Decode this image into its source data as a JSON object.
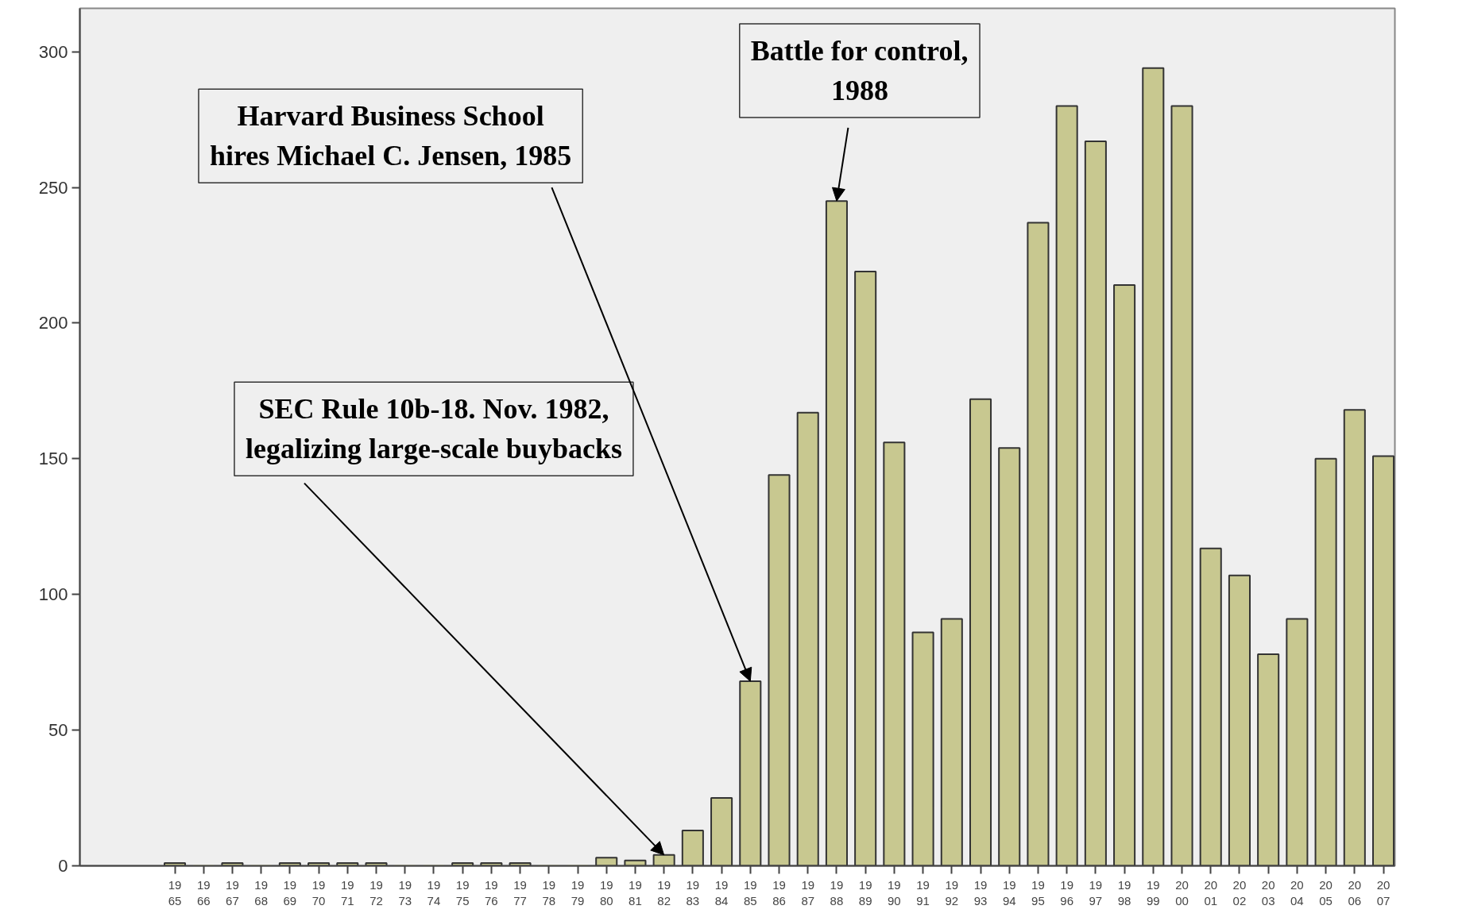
{
  "chart_data": {
    "type": "bar",
    "categories": [
      "19\n65",
      "19\n66",
      "19\n67",
      "19\n68",
      "19\n69",
      "19\n70",
      "19\n71",
      "19\n72",
      "19\n73",
      "19\n74",
      "19\n75",
      "19\n76",
      "19\n77",
      "19\n78",
      "19\n79",
      "19\n80",
      "19\n81",
      "19\n82",
      "19\n83",
      "19\n84",
      "19\n85",
      "19\n86",
      "19\n87",
      "19\n88",
      "19\n89",
      "19\n90",
      "19\n91",
      "19\n92",
      "19\n93",
      "19\n94",
      "19\n95",
      "19\n96",
      "19\n97",
      "19\n98",
      "19\n99",
      "20\n00",
      "20\n01",
      "20\n02",
      "20\n03",
      "20\n04",
      "20\n05",
      "20\n06",
      "20\n07"
    ],
    "values": [
      1,
      0,
      1,
      0,
      1,
      1,
      1,
      1,
      0,
      0,
      1,
      1,
      1,
      0,
      0,
      3,
      2,
      4,
      13,
      25,
      68,
      144,
      167,
      245,
      219,
      156,
      86,
      91,
      172,
      154,
      237,
      280,
      267,
      214,
      294,
      280,
      117,
      107,
      78,
      91,
      150,
      168,
      151
    ],
    "color": "#c8c890",
    "ylim": [
      0,
      316
    ],
    "yticks": [
      0,
      50,
      100,
      150,
      200,
      250,
      300
    ],
    "grid": false,
    "annotations": [
      {
        "text": "SEC Rule 10b-18. Nov. 1982,\nlegalizing large-scale buybacks",
        "x": "19\n82",
        "y": 4
      },
      {
        "text": "Harvard Business School\nhires Michael C. Jensen, 1985",
        "x": "19\n85",
        "y": 68
      },
      {
        "text": "Battle for control,\n1988",
        "x": "19\n88",
        "y": 245
      }
    ]
  }
}
